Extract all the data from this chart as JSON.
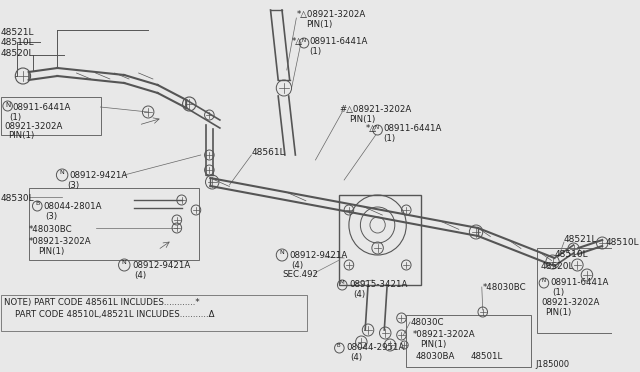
{
  "bg_color": "#e8e8e8",
  "line_color": "#555555",
  "text_color": "#222222",
  "fig_number": "J185000",
  "note_line1": "NOTE) PART CODE 48561L INCLUDES............*",
  "note_line2": "      PART CODE 48510L,48521L INCLUDES...........Δ",
  "figsize": [
    6.4,
    3.72
  ],
  "dpi": 100
}
